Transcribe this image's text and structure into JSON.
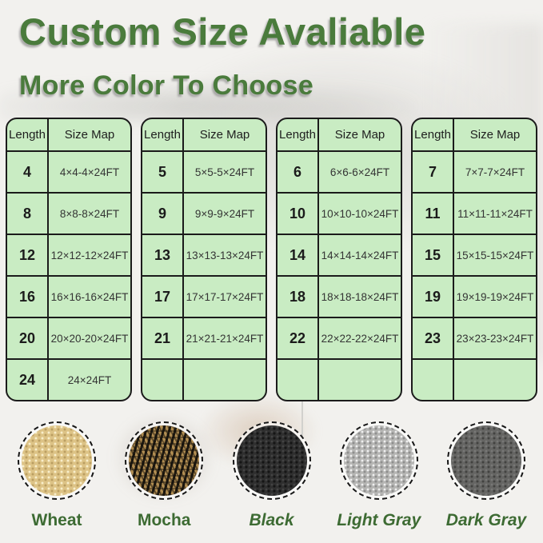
{
  "header": {
    "title": "Custom Size Avaliable",
    "subtitle": "More Color To Choose"
  },
  "table_headers": {
    "length": "Length",
    "size_map": "Size Map"
  },
  "tables": [
    {
      "rows": [
        {
          "length": "4",
          "size": "4×4-4×24FT"
        },
        {
          "length": "8",
          "size": "8×8-8×24FT"
        },
        {
          "length": "12",
          "size": "12×12-12×24FT"
        },
        {
          "length": "16",
          "size": "16×16-16×24FT"
        },
        {
          "length": "20",
          "size": "20×20-20×24FT"
        },
        {
          "length": "24",
          "size": "24×24FT"
        }
      ]
    },
    {
      "rows": [
        {
          "length": "5",
          "size": "5×5-5×24FT"
        },
        {
          "length": "9",
          "size": "9×9-9×24FT"
        },
        {
          "length": "13",
          "size": "13×13-13×24FT"
        },
        {
          "length": "17",
          "size": "17×17-17×24FT"
        },
        {
          "length": "21",
          "size": "21×21-21×24FT"
        },
        {
          "length": "",
          "size": ""
        }
      ]
    },
    {
      "rows": [
        {
          "length": "6",
          "size": "6×6-6×24FT"
        },
        {
          "length": "10",
          "size": "10×10-10×24FT"
        },
        {
          "length": "14",
          "size": "14×14-14×24FT"
        },
        {
          "length": "18",
          "size": "18×18-18×24FT"
        },
        {
          "length": "22",
          "size": "22×22-22×24FT"
        },
        {
          "length": "",
          "size": ""
        }
      ]
    },
    {
      "rows": [
        {
          "length": "7",
          "size": "7×7-7×24FT"
        },
        {
          "length": "11",
          "size": "11×11-11×24FT"
        },
        {
          "length": "15",
          "size": "15×15-15×24FT"
        },
        {
          "length": "19",
          "size": "19×19-19×24FT"
        },
        {
          "length": "23",
          "size": "23×23-23×24FT"
        },
        {
          "length": "",
          "size": ""
        }
      ]
    }
  ],
  "colors": [
    {
      "name": "Wheat",
      "key": "wheat",
      "swatch_base": "#ddc386"
    },
    {
      "name": "Mocha",
      "key": "mocha",
      "swatch_base": "#b28e52"
    },
    {
      "name": "Black",
      "key": "black",
      "swatch_base": "#2f2f2f"
    },
    {
      "name": "Light Gray",
      "key": "light-gray",
      "swatch_base": "#b6b6b4"
    },
    {
      "name": "Dark Gray",
      "key": "dark-gray",
      "swatch_base": "#656563"
    }
  ],
  "accent_colors": {
    "title_green": "#4a7b3c",
    "label_green": "#3d6b33",
    "table_bg": "#c9ecc3",
    "table_border": "#1b1b1b"
  }
}
